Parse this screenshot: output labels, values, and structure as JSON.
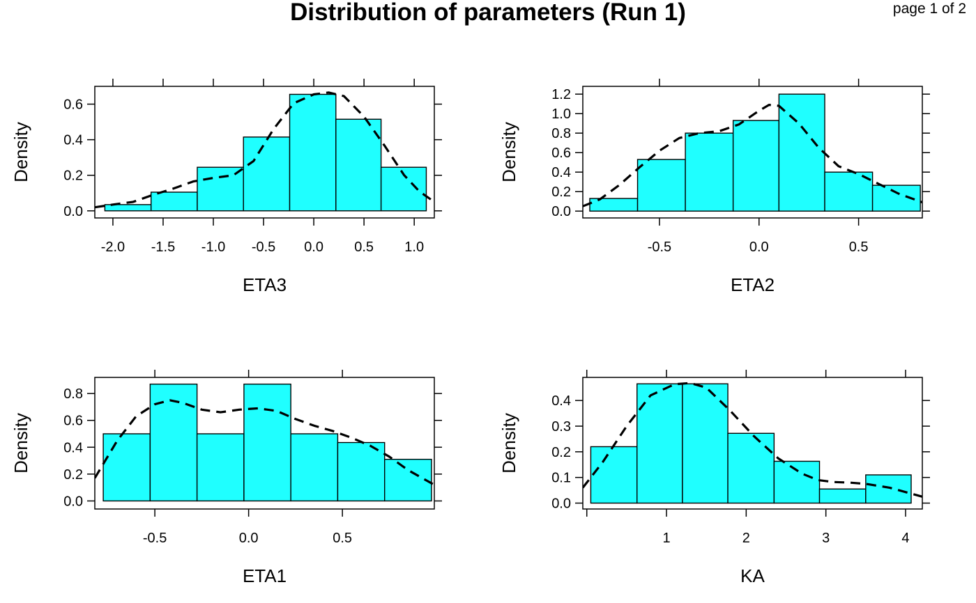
{
  "header": {
    "title": "Distribution of parameters (Run 1)",
    "page_indicator": "page 1 of 2"
  },
  "colors": {
    "bar_fill": "#1FFFFF",
    "bar_stroke": "#000000",
    "density_line": "#000000",
    "background": "#FFFFFF"
  },
  "chart_data": [
    {
      "type": "bar",
      "subtype": "histogram-with-density",
      "xlabel": "ETA3",
      "ylabel": "Density",
      "xlim": [
        -2.18,
        1.2
      ],
      "ylim": [
        -0.04,
        0.7
      ],
      "xticks": [
        {
          "value": -2.0,
          "label": "-2.0"
        },
        {
          "value": -1.5,
          "label": "-1.5"
        },
        {
          "value": -1.0,
          "label": "-1.0"
        },
        {
          "value": -0.5,
          "label": "-0.5"
        },
        {
          "value": 0.0,
          "label": "0.0"
        },
        {
          "value": 0.5,
          "label": "0.5"
        },
        {
          "value": 1.0,
          "label": "1.0"
        }
      ],
      "yticks": [
        {
          "value": 0.0,
          "label": "0.0"
        },
        {
          "value": 0.2,
          "label": "0.2"
        },
        {
          "value": 0.4,
          "label": "0.4"
        },
        {
          "value": 0.6,
          "label": "0.6"
        }
      ],
      "bins": [
        {
          "from": -2.08,
          "to": -1.62,
          "density": 0.035
        },
        {
          "from": -1.62,
          "to": -1.16,
          "density": 0.105
        },
        {
          "from": -1.16,
          "to": -0.7,
          "density": 0.245
        },
        {
          "from": -0.7,
          "to": -0.24,
          "density": 0.415
        },
        {
          "from": -0.24,
          "to": 0.22,
          "density": 0.655
        },
        {
          "from": 0.22,
          "to": 0.67,
          "density": 0.515
        },
        {
          "from": 0.67,
          "to": 1.12,
          "density": 0.245
        }
      ],
      "density_curve": {
        "x": [
          -2.18,
          -2.0,
          -1.8,
          -1.6,
          -1.4,
          -1.2,
          -1.0,
          -0.8,
          -0.6,
          -0.4,
          -0.2,
          0.0,
          0.15,
          0.3,
          0.5,
          0.7,
          0.9,
          1.05,
          1.2
        ],
        "y": [
          0.02,
          0.035,
          0.05,
          0.09,
          0.125,
          0.165,
          0.185,
          0.2,
          0.28,
          0.46,
          0.605,
          0.655,
          0.665,
          0.645,
          0.53,
          0.37,
          0.2,
          0.11,
          0.05
        ]
      }
    },
    {
      "type": "bar",
      "subtype": "histogram-with-density",
      "xlabel": "ETA2",
      "ylabel": "Density",
      "xlim": [
        -0.885,
        0.82
      ],
      "ylim": [
        -0.07,
        1.28
      ],
      "xticks": [
        {
          "value": -0.5,
          "label": "-0.5"
        },
        {
          "value": 0.0,
          "label": "0.0"
        },
        {
          "value": 0.5,
          "label": "0.5"
        }
      ],
      "yticks": [
        {
          "value": 0.0,
          "label": "0.0"
        },
        {
          "value": 0.2,
          "label": "0.2"
        },
        {
          "value": 0.4,
          "label": "0.4"
        },
        {
          "value": 0.6,
          "label": "0.6"
        },
        {
          "value": 0.8,
          "label": "0.8"
        },
        {
          "value": 1.0,
          "label": "1.0"
        },
        {
          "value": 1.2,
          "label": "1.2"
        }
      ],
      "bins": [
        {
          "from": -0.85,
          "to": -0.61,
          "density": 0.13
        },
        {
          "from": -0.61,
          "to": -0.37,
          "density": 0.53
        },
        {
          "from": -0.37,
          "to": -0.13,
          "density": 0.8
        },
        {
          "from": -0.13,
          "to": 0.1,
          "density": 0.93
        },
        {
          "from": 0.1,
          "to": 0.33,
          "density": 1.2
        },
        {
          "from": 0.33,
          "to": 0.57,
          "density": 0.4
        },
        {
          "from": 0.57,
          "to": 0.81,
          "density": 0.265
        }
      ],
      "density_curve": {
        "x": [
          -0.885,
          -0.8,
          -0.7,
          -0.6,
          -0.5,
          -0.4,
          -0.3,
          -0.2,
          -0.1,
          0.0,
          0.05,
          0.1,
          0.2,
          0.3,
          0.4,
          0.5,
          0.6,
          0.7,
          0.82
        ],
        "y": [
          0.05,
          0.12,
          0.27,
          0.45,
          0.62,
          0.75,
          0.8,
          0.82,
          0.89,
          1.03,
          1.09,
          1.08,
          0.9,
          0.65,
          0.46,
          0.38,
          0.28,
          0.18,
          0.09
        ]
      }
    },
    {
      "type": "bar",
      "subtype": "histogram-with-density",
      "xlabel": "ETA1",
      "ylabel": "Density",
      "xlim": [
        -0.82,
        0.99
      ],
      "ylim": [
        -0.06,
        0.92
      ],
      "xticks": [
        {
          "value": -0.5,
          "label": "-0.5"
        },
        {
          "value": 0.0,
          "label": "0.0"
        },
        {
          "value": 0.5,
          "label": "0.5"
        }
      ],
      "yticks": [
        {
          "value": 0.0,
          "label": "0.0"
        },
        {
          "value": 0.2,
          "label": "0.2"
        },
        {
          "value": 0.4,
          "label": "0.4"
        },
        {
          "value": 0.6,
          "label": "0.6"
        },
        {
          "value": 0.8,
          "label": "0.8"
        }
      ],
      "bins": [
        {
          "from": -0.775,
          "to": -0.525,
          "density": 0.5
        },
        {
          "from": -0.525,
          "to": -0.275,
          "density": 0.87
        },
        {
          "from": -0.275,
          "to": -0.025,
          "density": 0.5
        },
        {
          "from": -0.025,
          "to": 0.225,
          "density": 0.87
        },
        {
          "from": 0.225,
          "to": 0.475,
          "density": 0.5
        },
        {
          "from": 0.475,
          "to": 0.725,
          "density": 0.435
        },
        {
          "from": 0.725,
          "to": 0.975,
          "density": 0.31
        }
      ],
      "density_curve": {
        "x": [
          -0.82,
          -0.7,
          -0.6,
          -0.5,
          -0.42,
          -0.35,
          -0.25,
          -0.15,
          -0.05,
          0.05,
          0.15,
          0.25,
          0.35,
          0.45,
          0.55,
          0.65,
          0.75,
          0.85,
          0.99
        ],
        "y": [
          0.17,
          0.45,
          0.63,
          0.72,
          0.75,
          0.73,
          0.68,
          0.66,
          0.68,
          0.69,
          0.67,
          0.61,
          0.56,
          0.52,
          0.47,
          0.41,
          0.33,
          0.23,
          0.12
        ]
      }
    },
    {
      "type": "bar",
      "subtype": "histogram-with-density",
      "xlabel": "KA",
      "ylabel": "Density",
      "xlim": [
        -0.05,
        4.21
      ],
      "ylim": [
        -0.023,
        0.49
      ],
      "xticks": [
        {
          "value": 0,
          "label": ""
        },
        {
          "value": 1,
          "label": "1"
        },
        {
          "value": 2,
          "label": "2"
        },
        {
          "value": 3,
          "label": "3"
        },
        {
          "value": 4,
          "label": "4"
        }
      ],
      "yticks": [
        {
          "value": 0.0,
          "label": "0.0"
        },
        {
          "value": 0.1,
          "label": "0.1"
        },
        {
          "value": 0.2,
          "label": "0.2"
        },
        {
          "value": 0.3,
          "label": "0.3"
        },
        {
          "value": 0.4,
          "label": "0.4"
        }
      ],
      "bins": [
        {
          "from": 0.05,
          "to": 0.63,
          "density": 0.22
        },
        {
          "from": 0.63,
          "to": 1.2,
          "density": 0.465
        },
        {
          "from": 1.2,
          "to": 1.77,
          "density": 0.465
        },
        {
          "from": 1.77,
          "to": 2.35,
          "density": 0.272
        },
        {
          "from": 2.35,
          "to": 2.92,
          "density": 0.163
        },
        {
          "from": 2.92,
          "to": 3.5,
          "density": 0.055
        },
        {
          "from": 3.5,
          "to": 4.07,
          "density": 0.11
        }
      ],
      "density_curve": {
        "x": [
          -0.05,
          0.2,
          0.5,
          0.8,
          1.1,
          1.3,
          1.5,
          1.8,
          2.1,
          2.4,
          2.7,
          2.9,
          3.1,
          3.3,
          3.5,
          3.8,
          4.21
        ],
        "y": [
          0.06,
          0.16,
          0.3,
          0.42,
          0.463,
          0.468,
          0.45,
          0.36,
          0.26,
          0.175,
          0.115,
          0.09,
          0.082,
          0.08,
          0.075,
          0.06,
          0.025
        ]
      }
    }
  ]
}
